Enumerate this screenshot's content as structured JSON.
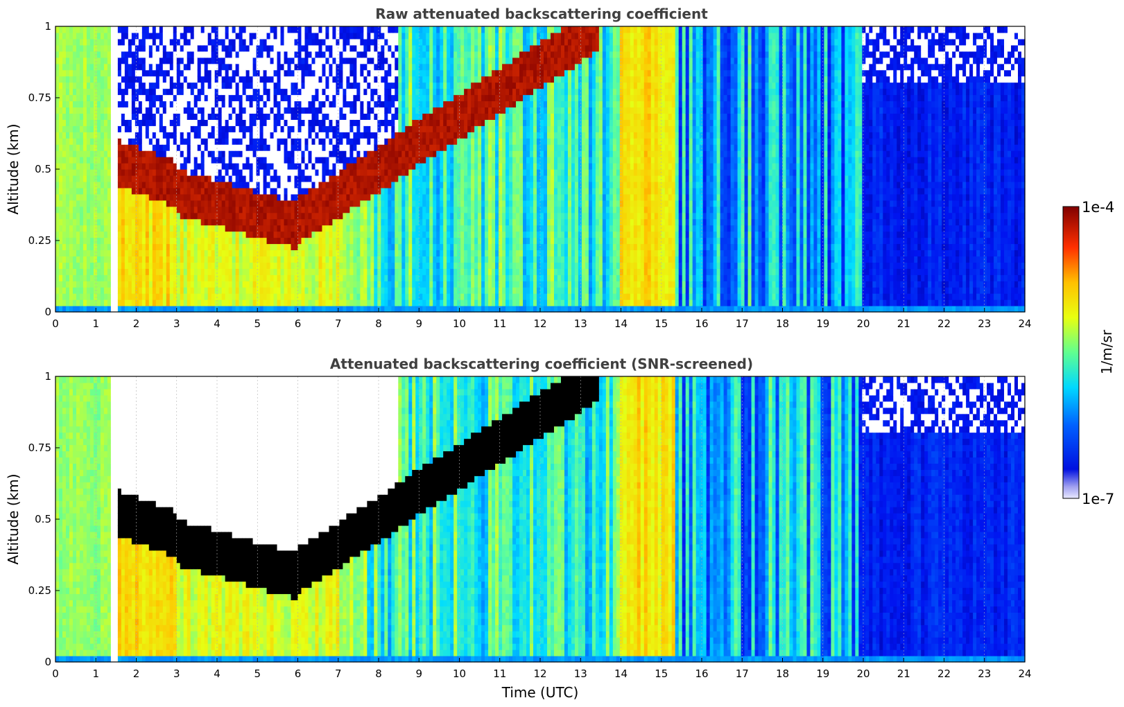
{
  "chart_data": [
    {
      "type": "heatmap",
      "title": "Raw attenuated backscattering coefficient",
      "ylabel": "Altitude (km)",
      "xlabel": "",
      "xlim": [
        0,
        24
      ],
      "ylim": [
        0,
        1
      ],
      "x_ticks": [
        "0",
        "1",
        "2",
        "3",
        "4",
        "5",
        "6",
        "7",
        "8",
        "9",
        "10",
        "11",
        "12",
        "13",
        "14",
        "15",
        "16",
        "17",
        "18",
        "19",
        "20",
        "21",
        "22",
        "23",
        "24"
      ],
      "y_ticks": [
        "0",
        "0.25",
        "0.5",
        "0.75",
        "1"
      ],
      "grid": true,
      "colormap": "jet",
      "color_scale": "log",
      "features": [
        {
          "desc": "no data gap",
          "time_utc": [
            1.4,
            1.55
          ]
        },
        {
          "desc": "dense aerosol/cloud layer",
          "time_utc": [
            1.6,
            8.5
          ],
          "altitude_km": [
            0.25,
            0.55
          ]
        },
        {
          "desc": "rising layer",
          "time_utc": [
            8.5,
            13.5
          ],
          "altitude_km": [
            0.55,
            1.0
          ]
        },
        {
          "desc": "clear low-backscatter period",
          "time_utc": [
            20,
            24
          ]
        }
      ]
    },
    {
      "type": "heatmap",
      "title": "Attenuated backscattering coefficient (SNR-screened)",
      "ylabel": "Altitude (km)",
      "xlabel": "Time (UTC)",
      "xlim": [
        0,
        24
      ],
      "ylim": [
        0,
        1
      ],
      "x_ticks": [
        "0",
        "1",
        "2",
        "3",
        "4",
        "5",
        "6",
        "7",
        "8",
        "9",
        "10",
        "11",
        "12",
        "13",
        "14",
        "15",
        "16",
        "17",
        "18",
        "19",
        "20",
        "21",
        "22",
        "23",
        "24"
      ],
      "y_ticks": [
        "0",
        "0.25",
        "0.5",
        "0.75",
        "1"
      ],
      "grid": true,
      "colormap": "jet",
      "color_scale": "log",
      "features": [
        {
          "desc": "screened-out region above layer",
          "time_utc": [
            1.5,
            8.5
          ],
          "altitude_km": [
            0.55,
            1.0
          ]
        },
        {
          "desc": "saturated layer",
          "time_utc": [
            1.6,
            8.5
          ],
          "altitude_km": [
            0.25,
            0.55
          ]
        },
        {
          "desc": "screened-out upper region",
          "time_utc": [
            20,
            24
          ],
          "altitude_km": [
            0.8,
            1.0
          ]
        }
      ]
    }
  ],
  "colorbar": {
    "label": "1/m/sr",
    "max_label": "1e-4",
    "min_label": "1e-7",
    "range": [
      1e-07,
      0.0001
    ],
    "scale": "log"
  }
}
